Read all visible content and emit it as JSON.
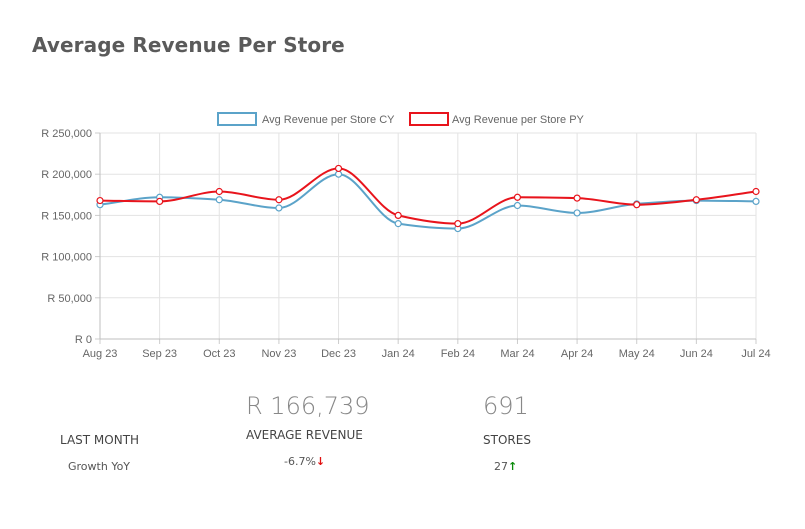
{
  "page": {
    "title": "Average Revenue Per Store"
  },
  "chart_data": {
    "type": "line",
    "categories": [
      "Aug 23",
      "Sep 23",
      "Oct 23",
      "Nov 23",
      "Dec 23",
      "Jan 24",
      "Feb 24",
      "Mar 24",
      "Apr 24",
      "May 24",
      "Jun 24",
      "Jul 24"
    ],
    "series": [
      {
        "name": "Avg Revenue per Store CY",
        "color": "#5ba3c9",
        "values": [
          163000,
          172000,
          169000,
          159000,
          200000,
          140000,
          134000,
          162000,
          153000,
          164000,
          168000,
          167000
        ]
      },
      {
        "name": "Avg Revenue per Store PY",
        "color": "#e8141c",
        "values": [
          168000,
          167000,
          179000,
          169000,
          207000,
          150000,
          140000,
          172000,
          171000,
          163000,
          169000,
          179000
        ]
      }
    ],
    "y_ticks": [
      "R 0",
      "R 50,000",
      "R 100,000",
      "R 150,000",
      "R 200,000",
      "R 250,000"
    ],
    "ylim": [
      0,
      250000
    ],
    "grid": true,
    "legend_position": "top-center"
  },
  "kpis": {
    "last_month_label": "LAST MONTH",
    "growth_label": "Growth YoY",
    "revenue": {
      "value": "R 166,739",
      "label": "AVERAGE REVENUE",
      "growth": "-6.7%",
      "arrow": "↓"
    },
    "stores": {
      "value": "691",
      "label": "STORES",
      "growth": "27",
      "arrow": "↑"
    }
  }
}
